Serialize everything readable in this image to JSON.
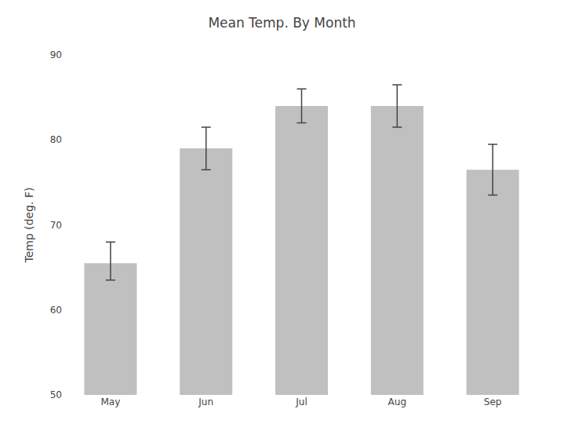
{
  "chart_data": {
    "type": "bar",
    "title": "Mean Temp. By Month",
    "ylabel": "Temp (deg. F)",
    "categories": [
      "May",
      "Jun",
      "Jul",
      "Aug",
      "Sep"
    ],
    "values": [
      65.5,
      79.0,
      84.0,
      84.0,
      76.5
    ],
    "ci_lower": [
      63.5,
      76.5,
      82.0,
      81.5,
      73.5
    ],
    "ci_upper": [
      68.0,
      81.5,
      86.0,
      86.5,
      79.5
    ],
    "color": "#c0c0c0",
    "ylim": [
      50,
      90
    ],
    "yticks": [
      50,
      60,
      70,
      80,
      90
    ],
    "grid": false
  }
}
